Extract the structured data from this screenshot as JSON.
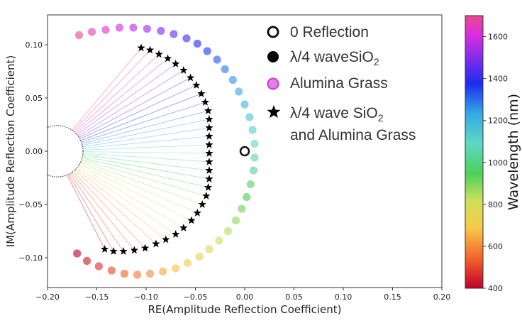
{
  "chart_data": {
    "type": "scatter",
    "xlabel": "RE(Amplitude Reflection Coefficient)",
    "ylabel": "IM(Amplitude Reflection Coefficient)",
    "xlim": [
      -0.2,
      0.2
    ],
    "ylim": [
      -0.128,
      0.128
    ],
    "xticks": [
      -0.2,
      -0.15,
      -0.1,
      -0.05,
      0.0,
      0.05,
      0.1,
      0.15,
      0.2
    ],
    "xtick_labels": [
      "−0.20",
      "−0.15",
      "−0.10",
      "−0.05",
      "0.00",
      "0.05",
      "0.10",
      "0.15",
      "0.20"
    ],
    "yticks": [
      0.1,
      0.05,
      0.0,
      -0.05,
      -0.1
    ],
    "ytick_labels": [
      "0.10",
      "0.05",
      "0.00",
      "−0.05",
      "−0.10"
    ],
    "grid": false,
    "legend_position": "upper-right",
    "legend": {
      "zero": "0 Reflection",
      "sio2_prefix": "λ/4 waveSiO",
      "sio2_sub": "2",
      "alumina": "Alumina Grass",
      "combo_line1_prefix": "λ/4 wave SiO",
      "combo_line1_sub": "2",
      "combo_line2": "and Alumina Grass"
    },
    "colorbar": {
      "label": "Wavelength (nm)",
      "min": 400,
      "max": 1700,
      "ticks": [
        400,
        600,
        800,
        1000,
        1200,
        1400,
        1600
      ],
      "tick_labels": [
        "400",
        "600",
        "800",
        "1000",
        "1200",
        "1400",
        "1600"
      ],
      "colormap": "rainbow-spectrum"
    },
    "zero_reflection_point": {
      "x": 0.0,
      "y": 0.0
    },
    "alumina_grass_circle": {
      "center_x": -0.19,
      "center_y": 0.0,
      "radius": 0.026
    },
    "series": [
      {
        "name": "Alumina Grass",
        "marker": "circle",
        "wavelength_range": [
          400,
          1700
        ],
        "points": [
          [
            -0.168,
            0.109
          ],
          [
            -0.155,
            0.112
          ],
          [
            -0.141,
            0.114
          ],
          [
            -0.127,
            0.116
          ],
          [
            -0.113,
            0.116
          ],
          [
            -0.099,
            0.115
          ],
          [
            -0.085,
            0.113
          ],
          [
            -0.072,
            0.11
          ],
          [
            -0.059,
            0.106
          ],
          [
            -0.048,
            0.101
          ],
          [
            -0.038,
            0.094
          ],
          [
            -0.028,
            0.086
          ],
          [
            -0.02,
            0.077
          ],
          [
            -0.012,
            0.067
          ],
          [
            -0.006,
            0.056
          ],
          [
            0.0,
            0.044
          ],
          [
            0.005,
            0.032
          ],
          [
            0.008,
            0.02
          ],
          [
            0.01,
            0.007
          ],
          [
            0.01,
            -0.006
          ],
          [
            0.009,
            -0.018
          ],
          [
            0.006,
            -0.031
          ],
          [
            0.002,
            -0.043
          ],
          [
            -0.003,
            -0.054
          ],
          [
            -0.009,
            -0.065
          ],
          [
            -0.017,
            -0.075
          ],
          [
            -0.026,
            -0.084
          ],
          [
            -0.036,
            -0.092
          ],
          [
            -0.046,
            -0.099
          ],
          [
            -0.058,
            -0.105
          ],
          [
            -0.07,
            -0.11
          ],
          [
            -0.083,
            -0.113
          ],
          [
            -0.096,
            -0.115
          ],
          [
            -0.109,
            -0.116
          ],
          [
            -0.122,
            -0.115
          ],
          [
            -0.135,
            -0.112
          ],
          [
            -0.148,
            -0.108
          ],
          [
            -0.16,
            -0.103
          ],
          [
            -0.17,
            -0.096
          ]
        ]
      },
      {
        "name": "λ/4 wave SiO2 and Alumina Grass",
        "marker": "star",
        "wavelength_range": [
          400,
          1700
        ],
        "points": [
          [
            -0.105,
            0.097
          ],
          [
            -0.096,
            0.095
          ],
          [
            -0.087,
            0.091
          ],
          [
            -0.078,
            0.087
          ],
          [
            -0.07,
            0.082
          ],
          [
            -0.062,
            0.076
          ],
          [
            -0.055,
            0.069
          ],
          [
            -0.049,
            0.062
          ],
          [
            -0.044,
            0.054
          ],
          [
            -0.04,
            0.046
          ],
          [
            -0.037,
            0.038
          ],
          [
            -0.036,
            0.03
          ],
          [
            -0.036,
            0.022
          ],
          [
            -0.036,
            0.014
          ],
          [
            -0.036,
            0.006
          ],
          [
            -0.036,
            -0.002
          ],
          [
            -0.036,
            -0.01
          ],
          [
            -0.036,
            -0.018
          ],
          [
            -0.036,
            -0.026
          ],
          [
            -0.037,
            -0.034
          ],
          [
            -0.039,
            -0.042
          ],
          [
            -0.043,
            -0.05
          ],
          [
            -0.048,
            -0.058
          ],
          [
            -0.054,
            -0.065
          ],
          [
            -0.062,
            -0.072
          ],
          [
            -0.07,
            -0.078
          ],
          [
            -0.08,
            -0.083
          ],
          [
            -0.09,
            -0.087
          ],
          [
            -0.101,
            -0.091
          ],
          [
            -0.112,
            -0.093
          ],
          [
            -0.123,
            -0.094
          ],
          [
            -0.133,
            -0.094
          ],
          [
            -0.142,
            -0.092
          ]
        ]
      }
    ]
  }
}
